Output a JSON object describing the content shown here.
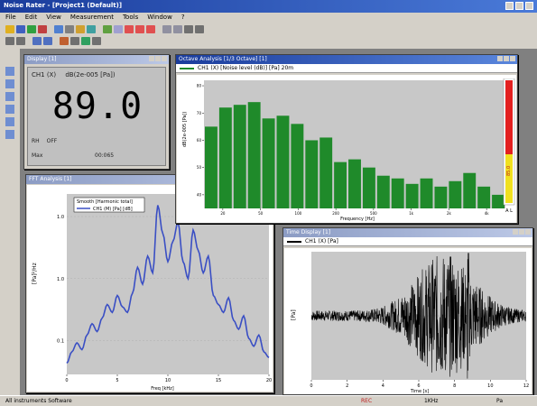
{
  "app": {
    "title": "Noise Rater - [Project1 (Default)]"
  },
  "menu": [
    "File",
    "Edit",
    "View",
    "Measurement",
    "Tools",
    "Window",
    "?"
  ],
  "left_panel_icons": [
    "lvl-icon",
    "fft-icon",
    "wave-icon",
    "meter-icon",
    "filter-icon",
    "data-icon"
  ],
  "level_window": {
    "title": "Display [1]",
    "channel": "CH1 (X)",
    "unit_label": "dB(2e-005 [Pa])",
    "value": "89.0",
    "status_1_key": "RH",
    "status_1_val": "OFF",
    "status_2_key": "Max",
    "status_2_val": "00:065"
  },
  "fft_window": {
    "title": "Octave Analysis [1/3 Octave] [1]",
    "legend": "CH1 (X) [Noise level (dB)] [Pa] 20m",
    "ylabel": "dB(2e-005 [Pa])",
    "xlabel": "Frequency [Hz]",
    "meter_label": "85.0",
    "meter_bottom": "A L"
  },
  "spectrum_window": {
    "title": "FFT Analysis [1]",
    "legend_box": "Smooth [Harmonic total]",
    "legend": "CH1 (M) [Pa] [dB]",
    "ylabel": "[Pa]²/Hz",
    "xlabel": "Freq [kHz]"
  },
  "time_window": {
    "title": "Time Display [1]",
    "legend": "CH1 (X) [Pa]",
    "ylabel": "[Pa]",
    "xlabel": "Time [s]"
  },
  "status": {
    "left": "All instruments Software",
    "rec": "REC",
    "mid": "1KHz",
    "right": "Pa"
  },
  "chart_data": [
    {
      "type": "bar",
      "name": "octave",
      "values": [
        65,
        72,
        73,
        74,
        68,
        69,
        66,
        60,
        61,
        52,
        53,
        50,
        47,
        46,
        44,
        46,
        43,
        45,
        48,
        43,
        40
      ],
      "ylim": [
        35,
        82
      ],
      "yticks": [
        40,
        50,
        60,
        70,
        80
      ],
      "xticks": [
        "20",
        "50",
        "100",
        "200",
        "500",
        "1k",
        "2k",
        "4k"
      ],
      "color": "#1f8a2a"
    },
    {
      "type": "line",
      "name": "spectrum",
      "x": [
        0,
        0.5,
        1,
        1.5,
        2,
        2.5,
        3,
        3.5,
        4,
        4.5,
        5,
        5.5,
        6,
        6.5,
        7,
        7.5,
        8,
        8.5,
        9,
        9.5,
        10,
        10.5,
        11,
        11.5,
        12,
        12.5,
        13,
        13.5,
        14,
        14.5,
        15,
        15.5,
        16,
        16.5,
        17,
        17.5,
        18,
        18.5,
        19,
        19.5,
        20
      ],
      "y": [
        0.1,
        0.2,
        0.28,
        0.22,
        0.35,
        0.45,
        0.38,
        0.5,
        0.62,
        0.55,
        0.7,
        0.6,
        0.55,
        0.72,
        0.95,
        0.8,
        1.05,
        0.9,
        1.5,
        1.25,
        1.0,
        1.18,
        1.35,
        1.0,
        0.85,
        1.28,
        1.1,
        0.9,
        1.05,
        0.7,
        0.62,
        0.55,
        0.68,
        0.48,
        0.4,
        0.52,
        0.32,
        0.25,
        0.35,
        0.2,
        0.15
      ],
      "xlim": [
        0,
        20
      ],
      "ylim": [
        0,
        1.6
      ],
      "yticks": [
        {
          "v": 0.3,
          "l": "0.1"
        },
        {
          "v": 0.85,
          "l": "1.0"
        },
        {
          "v": 1.4,
          "l": "1.0"
        }
      ],
      "xticks": [
        0,
        5,
        10,
        15,
        20
      ],
      "color": "#3a4fc4"
    },
    {
      "type": "line",
      "name": "waveform",
      "xlim": [
        0,
        12
      ],
      "xticks": [
        0,
        2,
        4,
        6,
        8,
        10,
        12
      ],
      "ylim": [
        -1,
        1
      ],
      "color": "#000000"
    }
  ]
}
